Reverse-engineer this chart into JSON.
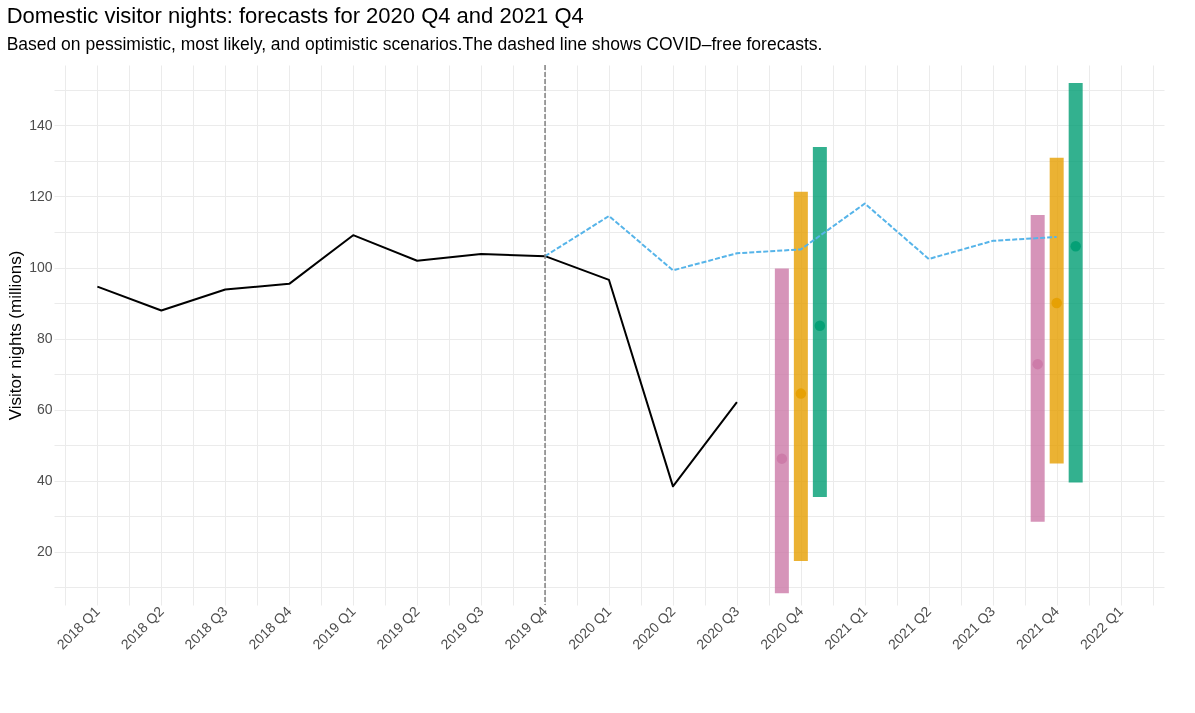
{
  "chart_data": {
    "type": "line",
    "title": "Domestic visitor nights: forecasts for 2020 Q4 and 2021 Q4",
    "subtitle": "Based on pessimistic, most likely, and optimistic scenarios.The dashed line shows COVID–free forecasts.",
    "ylabel": "Visitor nights (millions)",
    "categories": [
      "2018 Q1",
      "2018 Q2",
      "2018 Q3",
      "2018 Q4",
      "2019 Q1",
      "2019 Q2",
      "2019 Q3",
      "2019 Q4",
      "2020 Q1",
      "2020 Q2",
      "2020 Q3",
      "2020 Q4",
      "2021 Q1",
      "2021 Q2",
      "2021 Q3",
      "2021 Q4",
      "2022 Q1"
    ],
    "series": [
      {
        "type": "line",
        "color": "#000000",
        "values": [
          94.6,
          87.9,
          93.8,
          95.4,
          109.1,
          101.9,
          103.8,
          103.2,
          96.5,
          38.4,
          62.1,
          null,
          null,
          null,
          null,
          null,
          null
        ]
      },
      {
        "color": "#56b4e9",
        "line_style": "dashed",
        "values": [
          null,
          null,
          null,
          null,
          null,
          null,
          null,
          103.2,
          114.5,
          99.2,
          104.0,
          105.1,
          118.0,
          102.4,
          107.5,
          108.6,
          null
        ]
      },
      {
        "type": "bar",
        "color": "#cc79a7",
        "base": [
          null,
          null,
          null,
          null,
          null,
          null,
          null,
          null,
          null,
          null,
          null,
          8.3,
          null,
          null,
          null,
          28.4,
          null
        ],
        "values": [
          null,
          null,
          null,
          null,
          null,
          null,
          null,
          null,
          null,
          null,
          null,
          91.4,
          null,
          null,
          null,
          86.4,
          null
        ]
      },
      {
        "type": "bar",
        "color": "#e69f00",
        "base": [
          null,
          null,
          null,
          null,
          null,
          null,
          null,
          null,
          null,
          null,
          null,
          17.4,
          null,
          null,
          null,
          44.8,
          null
        ],
        "values": [
          null,
          null,
          null,
          null,
          null,
          null,
          null,
          null,
          null,
          null,
          null,
          103.9,
          null,
          null,
          null,
          86.1,
          null
        ]
      },
      {
        "type": "bar",
        "color": "#009e73",
        "base": [
          null,
          null,
          null,
          null,
          null,
          null,
          null,
          null,
          null,
          null,
          null,
          35.4,
          null,
          null,
          null,
          39.5,
          null
        ],
        "values": [
          null,
          null,
          null,
          null,
          null,
          null,
          null,
          null,
          null,
          null,
          null,
          98.5,
          null,
          null,
          null,
          112.4,
          null
        ]
      },
      {
        "type": "scatter",
        "color": "#cc79a7",
        "values": [
          null,
          null,
          null,
          null,
          null,
          null,
          null,
          null,
          null,
          null,
          null,
          46.2,
          null,
          null,
          null,
          72.8,
          null
        ]
      },
      {
        "type": "scatter",
        "color": "#e69f00",
        "values": [
          null,
          null,
          null,
          null,
          null,
          null,
          null,
          null,
          null,
          null,
          null,
          64.5,
          null,
          null,
          null,
          90.0,
          null
        ]
      },
      {
        "type": "scatter",
        "color": "#009e73",
        "values": [
          null,
          null,
          null,
          null,
          null,
          null,
          null,
          null,
          null,
          null,
          null,
          83.6,
          null,
          null,
          null,
          106.0,
          null
        ]
      }
    ],
    "ref_lines": [
      {
        "axis": "x",
        "value": "2019 Q4",
        "label": null,
        "color": "#808080",
        "line_style": "dashed"
      }
    ],
    "ylim": [
      5,
      157
    ],
    "yticks": [
      {
        "value": 10,
        "label": null
      },
      20,
      {
        "value": 30,
        "label": null
      },
      40,
      {
        "value": 50,
        "label": null
      },
      60,
      {
        "value": 70,
        "label": null
      },
      80,
      {
        "value": 90,
        "label": null
      },
      100,
      {
        "value": 110,
        "label": null
      },
      120,
      {
        "value": 130,
        "label": null
      },
      140,
      {
        "value": 150,
        "label": null
      }
    ],
    "grid": true
  }
}
